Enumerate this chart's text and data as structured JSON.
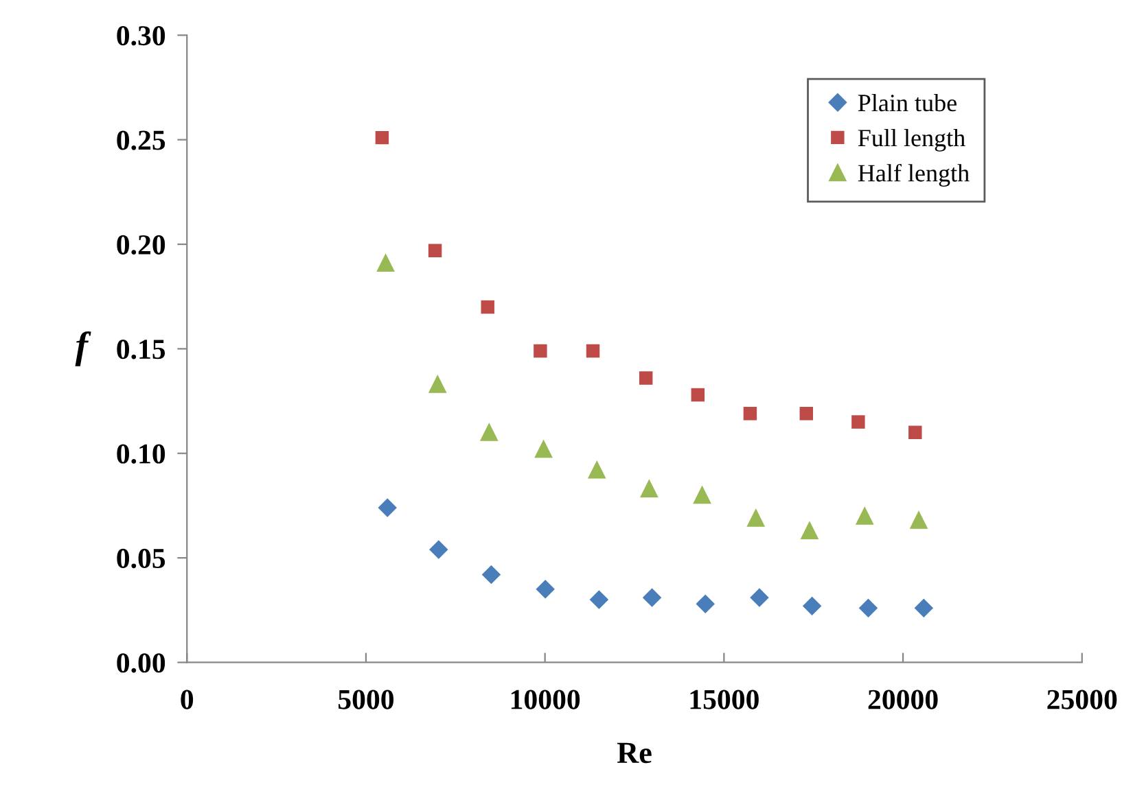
{
  "chart_data": {
    "type": "scatter",
    "xlabel": "Re",
    "ylabel": "f",
    "xlim": [
      0,
      25000
    ],
    "xticks": [
      0,
      5000,
      10000,
      15000,
      20000,
      25000
    ],
    "ylim": [
      0,
      0.3
    ],
    "yticks": [
      {
        "value": 0,
        "label": "0.00"
      },
      {
        "value": 0.05,
        "label": "0.05"
      },
      {
        "value": 0.1,
        "label": "0.10"
      },
      {
        "value": 0.15,
        "label": "0.15"
      },
      {
        "value": 0.2,
        "label": "0.20"
      },
      {
        "value": 0.25,
        "label": "0.25"
      },
      {
        "value": 0.3,
        "label": "0.30"
      }
    ],
    "grid": false,
    "legend": "top right",
    "series": [
      {
        "name": "Plain tube",
        "color": "#4a7ebb",
        "marker": "diamond",
        "x": [
          5600,
          7030,
          8500,
          10010,
          11510,
          12990,
          14480,
          15990,
          17460,
          19030,
          20580
        ],
        "values": [
          0.074,
          0.054,
          0.042,
          0.035,
          0.03,
          0.031,
          0.028,
          0.031,
          0.027,
          0.026,
          0.026
        ]
      },
      {
        "name": "Full length",
        "color": "#be4b48",
        "marker": "square",
        "x": [
          5450,
          6930,
          8400,
          9870,
          11340,
          12820,
          14270,
          15730,
          17300,
          18750,
          20340
        ],
        "values": [
          0.251,
          0.197,
          0.17,
          0.149,
          0.149,
          0.136,
          0.128,
          0.119,
          0.119,
          0.115,
          0.11
        ]
      },
      {
        "name": "Half length",
        "color": "#98b954",
        "marker": "triangle",
        "x": [
          5550,
          7000,
          8440,
          9960,
          11450,
          12910,
          14390,
          15890,
          17390,
          18930,
          20440
        ],
        "values": [
          0.191,
          0.133,
          0.11,
          0.102,
          0.092,
          0.083,
          0.08,
          0.069,
          0.063,
          0.07,
          0.068
        ]
      }
    ]
  }
}
